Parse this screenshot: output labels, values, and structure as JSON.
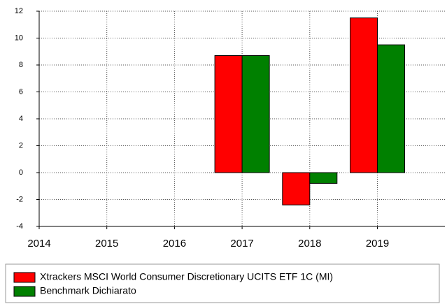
{
  "chart_data": {
    "type": "bar",
    "categories": [
      "2014",
      "2015",
      "2016",
      "2017",
      "2018",
      "2019"
    ],
    "series": [
      {
        "name": "Xtrackers MSCI World Consumer Discretionary UCITS ETF 1C (MI)",
        "color": "#ff0000",
        "values": [
          null,
          null,
          null,
          8.7,
          -2.4,
          11.5
        ]
      },
      {
        "name": "Benchmark Dichiarato",
        "color": "#008000",
        "values": [
          null,
          null,
          null,
          8.7,
          -0.8,
          9.5
        ]
      }
    ],
    "ylim": [
      -4,
      12
    ],
    "yticks": [
      -4,
      -2,
      0,
      2,
      4,
      6,
      8,
      10,
      12
    ],
    "grid": true
  }
}
